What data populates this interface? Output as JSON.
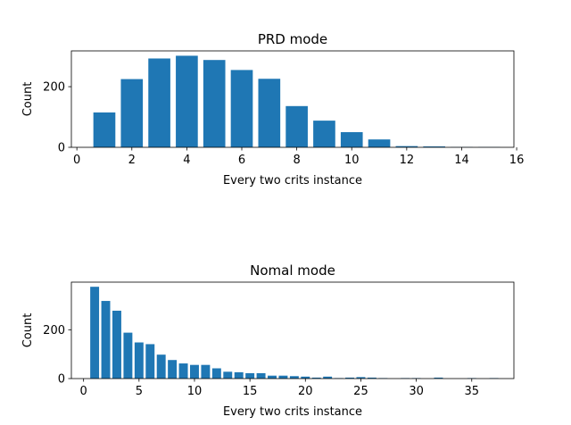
{
  "chart_data": [
    {
      "type": "bar",
      "title": "PRD mode",
      "xlabel": "Every two crits instance",
      "ylabel": "Count",
      "xlim": [
        -0.2,
        15.9
      ],
      "ylim": [
        0,
        318
      ],
      "xticks": [
        0,
        2,
        4,
        6,
        8,
        10,
        12,
        14,
        16
      ],
      "yticks": [
        0,
        200
      ],
      "color": "#1f77b4",
      "grid": false,
      "x": [
        1,
        2,
        3,
        4,
        5,
        6,
        7,
        8,
        9,
        10,
        11,
        12,
        13,
        14,
        15
      ],
      "values": [
        115,
        225,
        293,
        302,
        288,
        255,
        226,
        136,
        88,
        50,
        26,
        4,
        3,
        1,
        1
      ]
    },
    {
      "type": "bar",
      "title": "Nomal mode",
      "xlabel": "Every two crits instance",
      "ylabel": "Count",
      "xlim": [
        -1.1,
        38.8
      ],
      "ylim": [
        0,
        395
      ],
      "xticks": [
        0,
        5,
        10,
        15,
        20,
        25,
        30,
        35
      ],
      "yticks": [
        0,
        200
      ],
      "color": "#1f77b4",
      "grid": false,
      "x": [
        1,
        2,
        3,
        4,
        5,
        6,
        7,
        8,
        9,
        10,
        11,
        12,
        13,
        14,
        15,
        16,
        17,
        18,
        19,
        20,
        21,
        22,
        23,
        24,
        25,
        26,
        27,
        28,
        29,
        30,
        31,
        32,
        33,
        34,
        35,
        36,
        37
      ],
      "values": [
        376,
        318,
        278,
        188,
        148,
        141,
        98,
        76,
        62,
        56,
        56,
        42,
        28,
        26,
        22,
        22,
        12,
        12,
        10,
        8,
        4,
        8,
        2,
        4,
        6,
        4,
        2,
        0,
        2,
        2,
        0,
        4,
        0,
        0,
        2,
        0,
        2
      ]
    }
  ]
}
